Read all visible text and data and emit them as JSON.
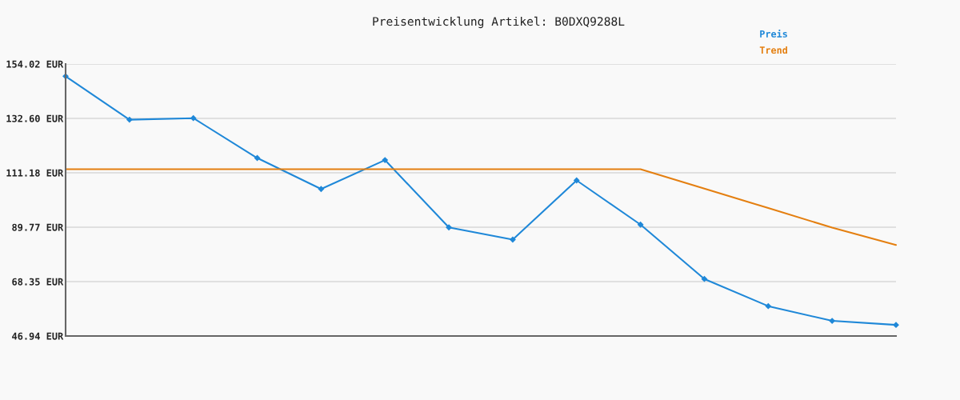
{
  "chart_data": {
    "type": "line",
    "title": "Preisentwicklung Artikel: B0DXQ9288L",
    "categories": [
      null,
      null,
      null,
      null,
      null,
      null,
      null,
      null,
      null,
      null,
      null,
      null,
      null,
      null
    ],
    "series": [
      {
        "name": "Preis",
        "color": "#1f88d8",
        "marker": "diamond",
        "values": [
          149.2,
          132.1,
          132.7,
          117.0,
          104.8,
          116.2,
          89.7,
          84.9,
          108.2,
          90.8,
          69.4,
          58.7,
          52.9,
          51.3
        ]
      },
      {
        "name": "Trend",
        "color": "#e47f10",
        "marker": "none",
        "values": [
          112.6,
          112.6,
          112.6,
          112.6,
          112.6,
          112.6,
          112.6,
          112.6,
          112.6,
          112.6,
          105.0,
          97.3,
          89.6,
          82.8
        ]
      }
    ],
    "ylim": [
      46.94,
      154.02
    ],
    "yticks": [
      {
        "value": 46.94,
        "label": "46.94 EUR"
      },
      {
        "value": 68.35,
        "label": "68.35 EUR"
      },
      {
        "value": 89.77,
        "label": "89.77 EUR"
      },
      {
        "value": 111.18,
        "label": "111.18 EUR"
      },
      {
        "value": 132.6,
        "label": "132.60 EUR"
      },
      {
        "value": 154.02,
        "label": "154.02 EUR"
      }
    ],
    "tick_labels": "y",
    "grid": "y",
    "legend": "top right",
    "line_style": "solid"
  }
}
